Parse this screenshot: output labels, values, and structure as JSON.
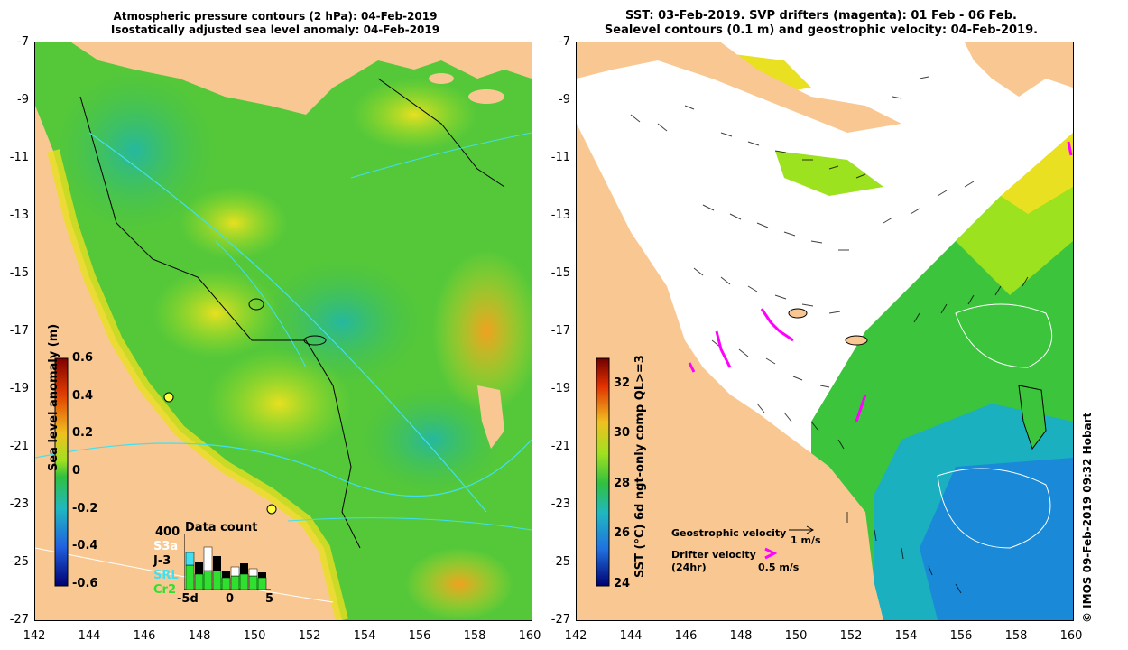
{
  "left_panel": {
    "title_line1": "Atmospheric pressure contours (2 hPa): 04-Feb-2019",
    "title_line2": "Isostatically adjusted sea level anomaly: 04-Feb-2019",
    "colorbar": {
      "label": "Sea level anomaly (m)",
      "ticks": [
        "0.6",
        "0.4",
        "0.2",
        "0",
        "-0.2",
        "-0.4",
        "-0.6"
      ]
    },
    "data_count": {
      "title": "Data count",
      "max_label": "400",
      "missions": [
        {
          "name": "S3a",
          "color": "#ffffff"
        },
        {
          "name": "J-3",
          "color": "#000000"
        },
        {
          "name": "SRL",
          "color": "#40e0f0"
        },
        {
          "name": "Cr2",
          "color": "#30e030"
        }
      ],
      "xticks": [
        "-5d",
        "0",
        "5"
      ]
    }
  },
  "right_panel": {
    "title_line1": "SST: 03-Feb-2019. SVP drifters (magenta): 01 Feb - 06 Feb.",
    "title_line2": "Sealevel contours (0.1 m) and geostrophic velocity: 04-Feb-2019.",
    "colorbar": {
      "label": "SST (°C) 6d ngt-only comp QL>=3",
      "ticks": [
        "32",
        "30",
        "28",
        "26",
        "24"
      ]
    },
    "legend": {
      "geostrophic_label": "Geostrophic velocity",
      "geostrophic_scale": "1 m/s",
      "drifter_label": "Drifter velocity",
      "drifter_label2": "(24hr)",
      "drifter_scale": "0.5 m/s"
    },
    "credit": "© IMOS 09-Feb-2019 09:32 Hobart"
  },
  "axes": {
    "y_ticks": [
      "-7",
      "-9",
      "-11",
      "-13",
      "-15",
      "-17",
      "-19",
      "-21",
      "-23",
      "-25",
      "-27"
    ],
    "x_ticks": [
      "142",
      "144",
      "146",
      "148",
      "150",
      "152",
      "154",
      "156",
      "158",
      "160"
    ]
  },
  "colors": {
    "land": "#f9c892",
    "sea_green": "#4cc43c",
    "sea_light": "#9ce21e",
    "sst_blue": "#1a8ad8",
    "drifter": "#ff00ff"
  }
}
